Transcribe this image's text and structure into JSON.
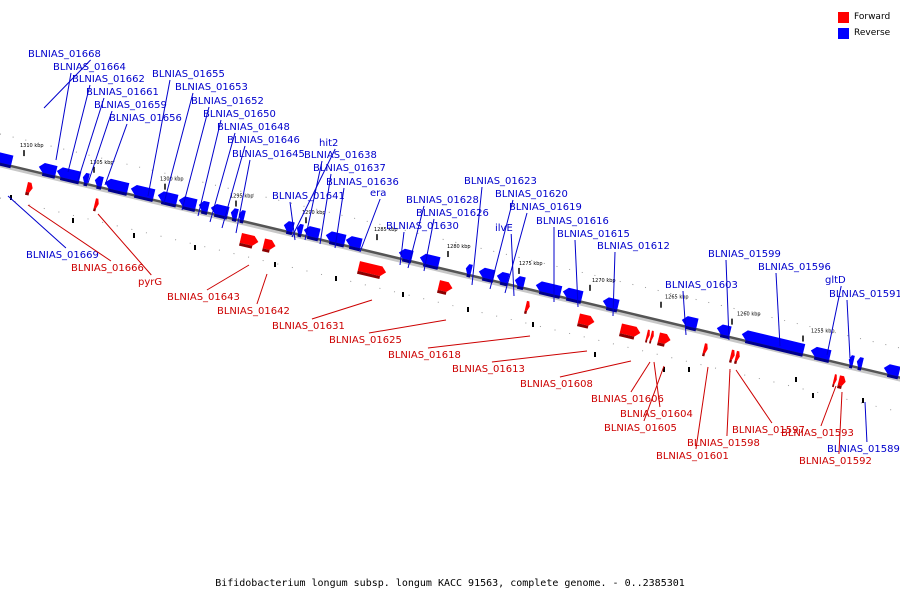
{
  "caption": "Bifidobacterium longum subsp. longum KACC 91563, complete genome. - 0..2385301",
  "legend": [
    {
      "label": "Forward",
      "color": "#ff0000"
    },
    {
      "label": "Reverse",
      "color": "#0000ff"
    }
  ],
  "colors": {
    "forward": "#ff0000",
    "reverse": "#0000ff",
    "forward_line": "#cc0000",
    "reverse_line": "#0000cc"
  },
  "ticks": [
    "1310 kbp",
    "1305 kbp",
    "1300 kbp",
    "1295 kbp",
    "1290 kbp",
    "1285 kbp",
    "1280 kbp",
    "1275 kbp",
    "1270 kbp",
    "1265 kbp",
    "1260 kbp",
    "1255 kbp"
  ],
  "genes": [
    {
      "name": "BLNIAS_01668",
      "strand": "reverse"
    },
    {
      "name": "BLNIAS_01664",
      "strand": "reverse"
    },
    {
      "name": "BLNIAS_01662",
      "strand": "reverse"
    },
    {
      "name": "BLNIAS_01661",
      "strand": "reverse"
    },
    {
      "name": "BLNIAS_01659",
      "strand": "reverse"
    },
    {
      "name": "BLNIAS_01656",
      "strand": "reverse"
    },
    {
      "name": "BLNIAS_01655",
      "strand": "reverse"
    },
    {
      "name": "BLNIAS_01653",
      "strand": "reverse"
    },
    {
      "name": "BLNIAS_01652",
      "strand": "reverse"
    },
    {
      "name": "BLNIAS_01650",
      "strand": "reverse"
    },
    {
      "name": "BLNIAS_01648",
      "strand": "reverse"
    },
    {
      "name": "BLNIAS_01646",
      "strand": "reverse"
    },
    {
      "name": "BLNIAS_01645",
      "strand": "reverse"
    },
    {
      "name": "hit2",
      "strand": "reverse"
    },
    {
      "name": "BLNIAS_01638",
      "strand": "reverse"
    },
    {
      "name": "BLNIAS_01637",
      "strand": "reverse"
    },
    {
      "name": "BLNIAS_01636",
      "strand": "reverse"
    },
    {
      "name": "era",
      "strand": "reverse"
    },
    {
      "name": "BLNIAS_01641",
      "strand": "reverse"
    },
    {
      "name": "BLNIAS_01628",
      "strand": "reverse"
    },
    {
      "name": "BLNIAS_01626",
      "strand": "reverse"
    },
    {
      "name": "BLNIAS_01630",
      "strand": "reverse"
    },
    {
      "name": "BLNIAS_01623",
      "strand": "reverse"
    },
    {
      "name": "BLNIAS_01620",
      "strand": "reverse"
    },
    {
      "name": "BLNIAS_01619",
      "strand": "reverse"
    },
    {
      "name": "ilvE",
      "strand": "reverse"
    },
    {
      "name": "BLNIAS_01616",
      "strand": "reverse"
    },
    {
      "name": "BLNIAS_01615",
      "strand": "reverse"
    },
    {
      "name": "BLNIAS_01612",
      "strand": "reverse"
    },
    {
      "name": "BLNIAS_01603",
      "strand": "reverse"
    },
    {
      "name": "BLNIAS_01599",
      "strand": "reverse"
    },
    {
      "name": "BLNIAS_01596",
      "strand": "reverse"
    },
    {
      "name": "gltD",
      "strand": "reverse"
    },
    {
      "name": "BLNIAS_01591",
      "strand": "reverse"
    },
    {
      "name": "BLNIAS_01669",
      "strand": "reverse"
    },
    {
      "name": "BLNIAS_01589",
      "strand": "reverse"
    },
    {
      "name": "BLNIAS_01666",
      "strand": "forward"
    },
    {
      "name": "pyrG",
      "strand": "forward"
    },
    {
      "name": "BLNIAS_01643",
      "strand": "forward"
    },
    {
      "name": "BLNIAS_01642",
      "strand": "forward"
    },
    {
      "name": "BLNIAS_01631",
      "strand": "forward"
    },
    {
      "name": "BLNIAS_01625",
      "strand": "forward"
    },
    {
      "name": "BLNIAS_01618",
      "strand": "forward"
    },
    {
      "name": "BLNIAS_01613",
      "strand": "forward"
    },
    {
      "name": "BLNIAS_01608",
      "strand": "forward"
    },
    {
      "name": "BLNIAS_01606",
      "strand": "forward"
    },
    {
      "name": "BLNIAS_01604",
      "strand": "forward"
    },
    {
      "name": "BLNIAS_01605",
      "strand": "forward"
    },
    {
      "name": "BLNIAS_01597",
      "strand": "forward"
    },
    {
      "name": "BLNIAS_01598",
      "strand": "forward"
    },
    {
      "name": "BLNIAS_01601",
      "strand": "forward"
    },
    {
      "name": "BLNIAS_01593",
      "strand": "forward"
    },
    {
      "name": "BLNIAS_01592",
      "strand": "forward"
    }
  ]
}
